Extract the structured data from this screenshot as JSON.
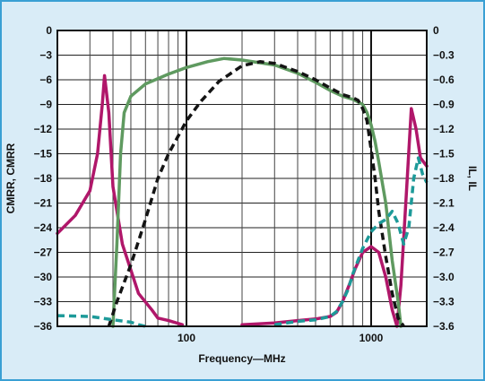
{
  "chart_data": {
    "type": "line",
    "title": "",
    "xlabel": "Frequency—MHz",
    "ylabel_left": "CMRR, CMRR",
    "ylabel_right": "IL, IL",
    "x_scale": "log",
    "xlim": [
      20,
      2000
    ],
    "ylim_left": [
      -36,
      0
    ],
    "ylim_right": [
      -3.6,
      0
    ],
    "grid": true,
    "legend": "none",
    "left_ticks": [
      "0",
      "−3",
      "−6",
      "−9",
      "−12",
      "−15",
      "−18",
      "−21",
      "−24",
      "−27",
      "−30",
      "−33",
      "−36"
    ],
    "right_ticks": [
      "0",
      "−0.3",
      "−0.6",
      "−0.9",
      "−1.2",
      "−1.5",
      "−1.8",
      "−2.1",
      "−2.4",
      "−2.7",
      "−3.0",
      "−3.3",
      "−3.6"
    ],
    "x_tick_labels": [
      {
        "value": 100,
        "label": "100"
      },
      {
        "value": 1000,
        "label": "1000"
      }
    ],
    "series": [
      {
        "axis": "left",
        "color": "#b0176a",
        "style": "solid",
        "x": [
          20,
          25,
          30,
          33,
          35,
          36,
          38,
          40,
          45,
          55,
          65,
          70,
          80,
          95
        ],
        "y": [
          -24.7,
          -22.5,
          -19.5,
          -15,
          -9,
          -5.5,
          -10,
          -19,
          -26,
          -32,
          -34,
          -35,
          -35.3,
          -35.8
        ]
      },
      {
        "axis": "left",
        "color": "#b0176a",
        "style": "solid",
        "x": [
          200,
          300,
          400,
          500,
          600,
          650,
          700,
          760,
          820,
          900,
          1000,
          1100,
          1200,
          1300,
          1380,
          1450,
          1550,
          1650,
          1750,
          1850,
          2000
        ],
        "y": [
          -35.8,
          -35.6,
          -35.3,
          -35.1,
          -34.8,
          -34.3,
          -33,
          -31,
          -29,
          -27,
          -26.3,
          -27,
          -30,
          -34,
          -36,
          -31,
          -20,
          -9.5,
          -12,
          -15.5,
          -16.5
        ]
      },
      {
        "axis": "left",
        "color": "#5f9a60",
        "style": "solid",
        "x": [
          40,
          42,
          44,
          46,
          50,
          60,
          80,
          100,
          130,
          160,
          200,
          300,
          400,
          500,
          600,
          700,
          800,
          900,
          950,
          1000,
          1050,
          1100,
          1200,
          1300,
          1400,
          1450
        ],
        "y": [
          -36,
          -26,
          -15,
          -10,
          -8,
          -6.5,
          -5.3,
          -4.5,
          -3.8,
          -3.4,
          -3.6,
          -4.2,
          -5.2,
          -6.3,
          -7.3,
          -8,
          -8.4,
          -9,
          -10,
          -11.5,
          -13.5,
          -16,
          -21,
          -28,
          -33,
          -36
        ]
      }
    ],
    "dashed_series": [
      {
        "axis": "right",
        "color": "#141414",
        "style": "dashed",
        "x": [
          38,
          42,
          50,
          60,
          70,
          80,
          100,
          120,
          150,
          200,
          250,
          300,
          400,
          500,
          600,
          700,
          800,
          850,
          900,
          950,
          1000,
          1050,
          1100,
          1200,
          1300,
          1400,
          1500
        ],
        "y": [
          -3.6,
          -3.3,
          -2.85,
          -2.3,
          -1.8,
          -1.5,
          -1.1,
          -0.86,
          -0.62,
          -0.43,
          -0.38,
          -0.4,
          -0.5,
          -0.6,
          -0.7,
          -0.78,
          -0.82,
          -0.85,
          -0.95,
          -1.1,
          -1.45,
          -1.8,
          -2.2,
          -2.75,
          -3.2,
          -3.5,
          -3.6
        ]
      },
      {
        "axis": "right",
        "color": "#1d9a99",
        "style": "dashed",
        "x": [
          20,
          30,
          40,
          50,
          55,
          60
        ],
        "y": [
          -3.47,
          -3.48,
          -3.52,
          -3.55,
          -3.58,
          -3.6
        ]
      },
      {
        "axis": "right",
        "color": "#1d9a99",
        "style": "dashed",
        "x": [
          300,
          400,
          500,
          600,
          650,
          700,
          750,
          800,
          900,
          1000,
          1100,
          1200,
          1300,
          1400,
          1500,
          1600,
          1700,
          1800,
          1900,
          2000
        ],
        "y": [
          -3.58,
          -3.54,
          -3.52,
          -3.48,
          -3.42,
          -3.3,
          -3.15,
          -2.95,
          -2.65,
          -2.45,
          -2.35,
          -2.3,
          -2.2,
          -2.35,
          -2.6,
          -2.4,
          -1.8,
          -1.55,
          -1.75,
          -1.85
        ]
      }
    ]
  }
}
